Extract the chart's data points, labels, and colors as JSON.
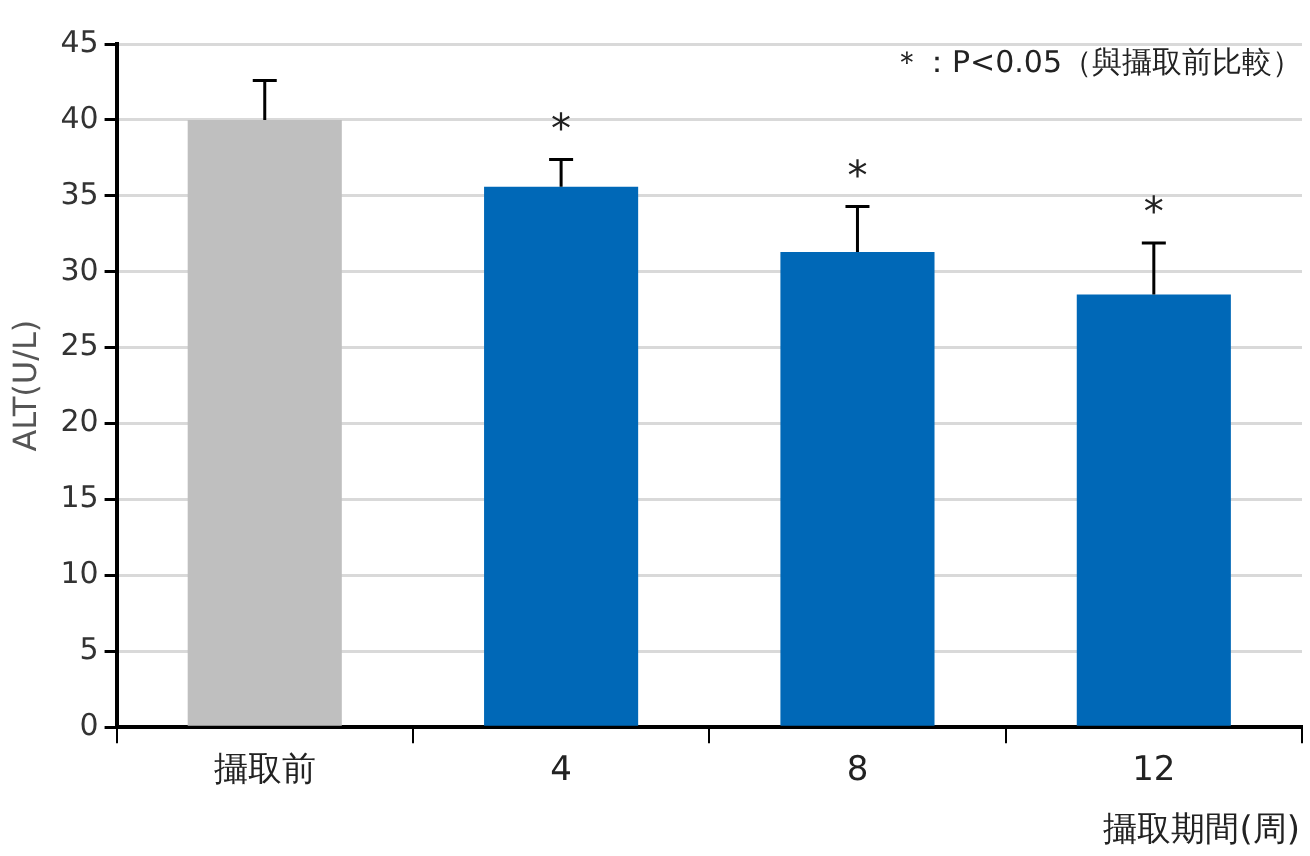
{
  "chart_data": {
    "type": "bar",
    "ylabel": "ALT(U/L)",
    "xlabel": "攝取期間(周)",
    "categories": [
      "攝取前",
      "4",
      "8",
      "12"
    ],
    "values": [
      40.0,
      35.6,
      31.3,
      28.5
    ],
    "colors": [
      "#bfbfbf",
      "#0068b7",
      "#0068b7",
      "#0068b7"
    ],
    "errors": [
      [
        40.0,
        42.6
      ],
      [
        35.6,
        37.4
      ],
      [
        31.3,
        34.3
      ],
      [
        28.5,
        31.9
      ]
    ],
    "ylim": [
      0,
      45
    ],
    "yticks": [
      0,
      5,
      10,
      15,
      20,
      25,
      30,
      35,
      40,
      45
    ],
    "grid": "y",
    "legend": false,
    "annotations": [
      "＊：P<0.05（與攝取前比較）",
      "*",
      "*",
      "*"
    ]
  }
}
